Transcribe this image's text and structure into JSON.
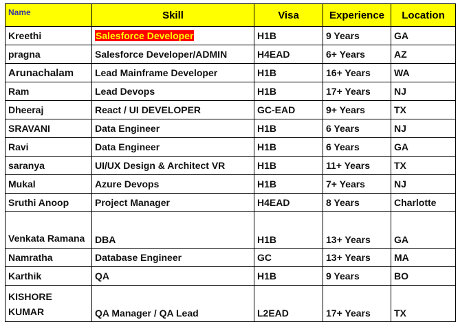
{
  "headers": {
    "name": "Name",
    "skill": "Skill",
    "visa": "Visa",
    "experience": "Experience",
    "location": "Location"
  },
  "colors": {
    "header_bg": "#ffff00",
    "highlight_bg": "#ff0000",
    "highlight_text": "#ffff00",
    "experience_text": "#1f3a57"
  },
  "rows": [
    {
      "name": "Kreethi",
      "skill": "Salesforce Developer",
      "visa": "H1B",
      "experience": "9 Years",
      "location": "GA"
    },
    {
      "name": "pragna",
      "skill": "Salesforce Developer/ADMIN",
      "visa": "H4EAD",
      "experience": "6+ Years",
      "location": "AZ"
    },
    {
      "name": "Arunachalam",
      "skill": "Lead Mainframe Developer",
      "visa": "H1B",
      "experience": "16+ Years",
      "location": "WA"
    },
    {
      "name": "Ram",
      "skill": "Lead Devops",
      "visa": "H1B",
      "experience": "17+ Years",
      "location": "NJ"
    },
    {
      "name": "Dheeraj",
      "skill": "React / UI DEVELOPER",
      "visa": "GC-EAD",
      "experience": "9+ Years",
      "location": "TX"
    },
    {
      "name": "SRAVANI",
      "skill": "Data Engineer",
      "visa": "H1B",
      "experience": "6 Years",
      "location": "NJ"
    },
    {
      "name": "Ravi",
      "skill": "Data Engineer",
      "visa": "H1B",
      "experience": "6 Years",
      "location": "GA"
    },
    {
      "name": "saranya",
      "skill": "UI/UX Design & Architect VR",
      "visa": "H1B",
      "experience": "11+ Years",
      "location": "TX"
    },
    {
      "name": "Mukal",
      "skill": "Azure Devops",
      "visa": "H1B",
      "experience": "7+ Years",
      "location": "NJ"
    },
    {
      "name": "Sruthi Anoop",
      "skill": "Project Manager",
      "visa": "H4EAD",
      "experience": "8 Years",
      "location": "Charlotte"
    },
    {
      "name": "Venkata Ramana",
      "skill": "DBA",
      "visa": "H1B",
      "experience": "13+ Years",
      "location": "GA"
    },
    {
      "name": "Namratha",
      "skill": "Database Engineer",
      "visa": "GC",
      "experience": "13+ Years",
      "location": "MA"
    },
    {
      "name": "Karthik",
      "skill": "QA",
      "visa": "H1B",
      "experience": "9 Years",
      "location": "BO"
    },
    {
      "name": "KISHORE KUMAR",
      "skill": "QA Manager / QA Lead",
      "visa": "L2EAD",
      "experience": "17+ Years",
      "location": "TX"
    }
  ]
}
